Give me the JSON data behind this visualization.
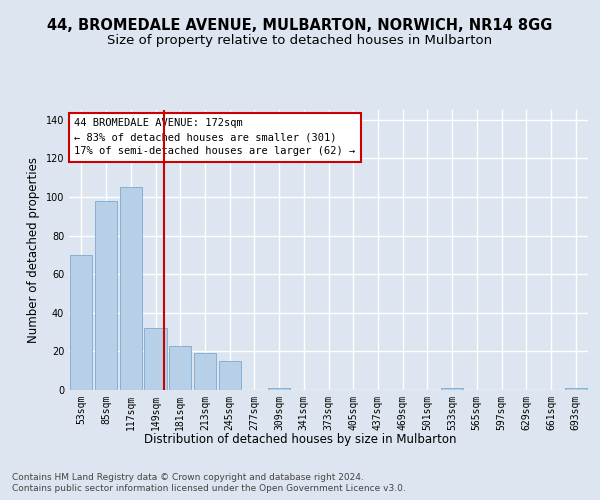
{
  "title_line1": "44, BROMEDALE AVENUE, MULBARTON, NORWICH, NR14 8GG",
  "title_line2": "Size of property relative to detached houses in Mulbarton",
  "xlabel": "Distribution of detached houses by size in Mulbarton",
  "ylabel": "Number of detached properties",
  "categories": [
    "53sqm",
    "85sqm",
    "117sqm",
    "149sqm",
    "181sqm",
    "213sqm",
    "245sqm",
    "277sqm",
    "309sqm",
    "341sqm",
    "373sqm",
    "405sqm",
    "437sqm",
    "469sqm",
    "501sqm",
    "533sqm",
    "565sqm",
    "597sqm",
    "629sqm",
    "661sqm",
    "693sqm"
  ],
  "values": [
    70,
    98,
    105,
    32,
    23,
    19,
    15,
    0,
    1,
    0,
    0,
    0,
    0,
    0,
    0,
    1,
    0,
    0,
    0,
    0,
    1
  ],
  "bar_color": "#b8cfe8",
  "bar_edge_color": "#7aaad0",
  "vline_color": "#cc0000",
  "annotation_text": "44 BROMEDALE AVENUE: 172sqm\n← 83% of detached houses are smaller (301)\n17% of semi-detached houses are larger (62) →",
  "annotation_box_color": "#ffffff",
  "annotation_box_edge": "#cc0000",
  "ylim": [
    0,
    145
  ],
  "yticks": [
    0,
    20,
    40,
    60,
    80,
    100,
    120,
    140
  ],
  "bg_color": "#dde6f0",
  "plot_bg_color": "#dde6f0",
  "grid_color": "#ffffff",
  "footer_line1": "Contains HM Land Registry data © Crown copyright and database right 2024.",
  "footer_line2": "Contains public sector information licensed under the Open Government Licence v3.0.",
  "title_fontsize": 10.5,
  "subtitle_fontsize": 9.5,
  "tick_fontsize": 7,
  "ylabel_fontsize": 8.5,
  "xlabel_fontsize": 8.5,
  "footer_fontsize": 6.5
}
